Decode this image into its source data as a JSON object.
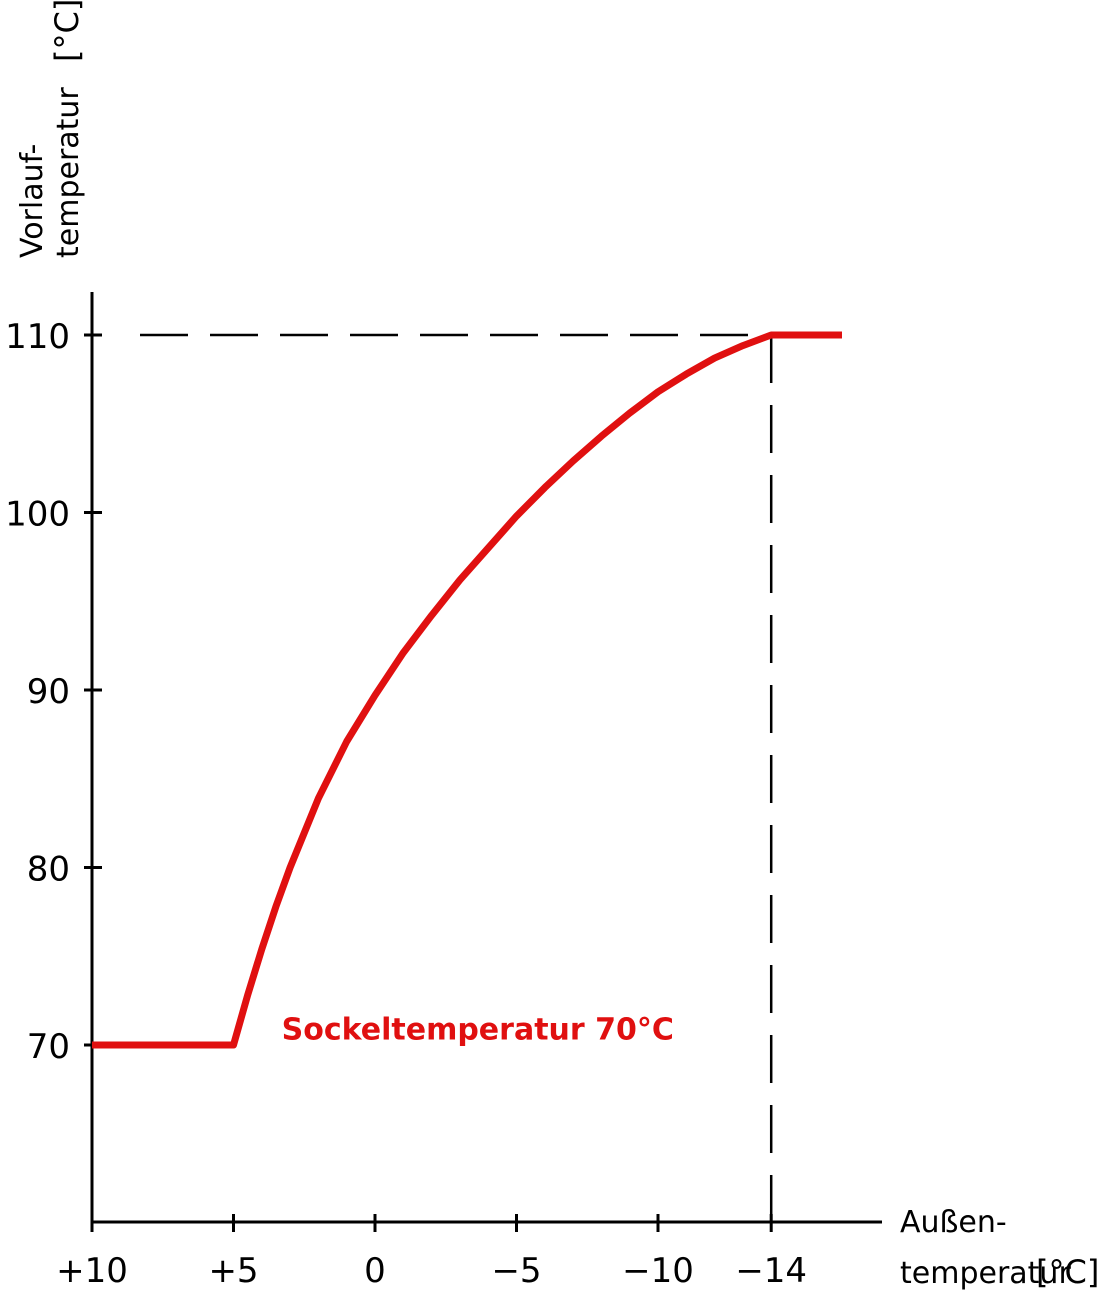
{
  "chart_data": {
    "type": "line",
    "title": "",
    "ylabel": "Vorlauf-",
    "ylabel_line2": "temperatur",
    "ylabel_unit": "[°C]",
    "xlabel": "Außen-",
    "xlabel_line2": "temperatur",
    "xlabel_unit": "[°C]",
    "x_reversed": true,
    "xlim": [
      10,
      -16.5
    ],
    "ylim": [
      60,
      112.5
    ],
    "x_ticks": [
      10,
      5,
      0,
      -5,
      -10,
      -14
    ],
    "x_tick_labels": [
      "+10",
      "+5",
      "0",
      "−5",
      "−10",
      "−14"
    ],
    "y_ticks": [
      70,
      80,
      90,
      100,
      110
    ],
    "y_tick_labels": [
      "70",
      "80",
      "90",
      "100",
      "110"
    ],
    "reference_lines": [
      {
        "style": "dashed",
        "orientation": "horizontal",
        "y": 110,
        "from_x": 10,
        "to_x": -14
      },
      {
        "style": "dashed",
        "orientation": "vertical",
        "x": -14,
        "from_y": 60,
        "to_y": 110
      }
    ],
    "series": [
      {
        "color": "#e01010",
        "x": [
          10,
          5,
          4.5,
          4,
          3.5,
          3,
          2,
          1,
          0,
          -1,
          -2,
          -3,
          -4,
          -5,
          -6,
          -7,
          -8,
          -9,
          -10,
          -11,
          -12,
          -13,
          -14,
          -16.5
        ],
        "y": [
          70,
          70,
          72.8,
          75.4,
          77.8,
          80,
          83.9,
          87.1,
          89.7,
          92.1,
          94.2,
          96.2,
          98.0,
          99.8,
          101.4,
          102.9,
          104.3,
          105.6,
          106.8,
          107.8,
          108.7,
          109.4,
          110,
          110
        ]
      }
    ],
    "annotations": [
      {
        "text": "Sockeltemperatur 70°C",
        "x": 3.3,
        "y": 70.3,
        "color": "#e01010"
      }
    ]
  }
}
